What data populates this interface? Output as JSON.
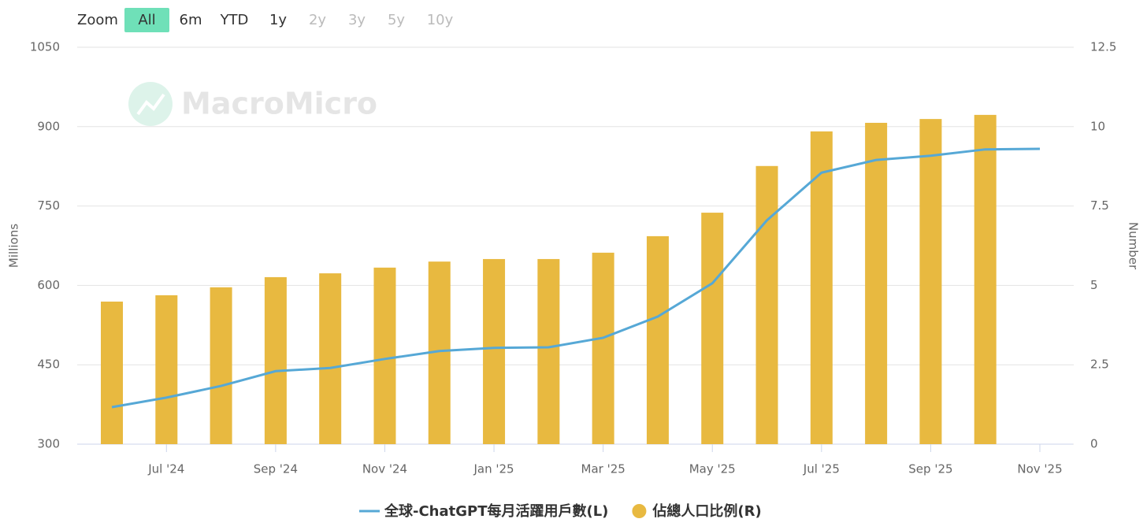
{
  "zoom": {
    "label": "Zoom",
    "buttons": [
      "All",
      "6m",
      "YTD",
      "1y",
      "2y",
      "3y",
      "5y",
      "10y"
    ],
    "selected": "All",
    "enabled": [
      "All",
      "6m",
      "YTD",
      "1y"
    ]
  },
  "watermark": "MacroMicro",
  "chart_data": {
    "type": "bar-line",
    "ylabel": "Millions",
    "y2label": "Number",
    "categories": [
      null,
      "Jul '24",
      null,
      "Sep '24",
      null,
      "Nov '24",
      null,
      "Jan '25",
      null,
      "Mar '25",
      null,
      "May '25",
      null,
      "Jul '25",
      null,
      "Sep '25",
      null,
      "Nov '25"
    ],
    "ylim": [
      300,
      1050
    ],
    "yticks": [
      300,
      450,
      600,
      750,
      900,
      1050
    ],
    "y2lim": [
      0,
      12.5
    ],
    "y2ticks": [
      0,
      2.5,
      5,
      7.5,
      10,
      12.5
    ],
    "grid": true,
    "series": [
      {
        "name": "全球-ChatGPT每月活躍用戶數(L)",
        "type": "line",
        "color": "#56a8d6",
        "values": [
          370,
          388,
          410,
          438,
          444,
          461,
          476,
          482,
          483,
          501,
          541,
          604,
          723,
          813,
          837,
          845,
          857,
          858
        ]
      },
      {
        "name": "佔總人口比例(R)",
        "type": "bar",
        "axis": "y2",
        "color": "#e8b940",
        "values": [
          4.49,
          4.69,
          4.94,
          5.26,
          5.38,
          5.56,
          5.75,
          5.83,
          5.83,
          6.03,
          6.55,
          7.29,
          8.76,
          9.85,
          10.12,
          10.24,
          10.37,
          null
        ]
      }
    ],
    "legend": "bottom"
  }
}
